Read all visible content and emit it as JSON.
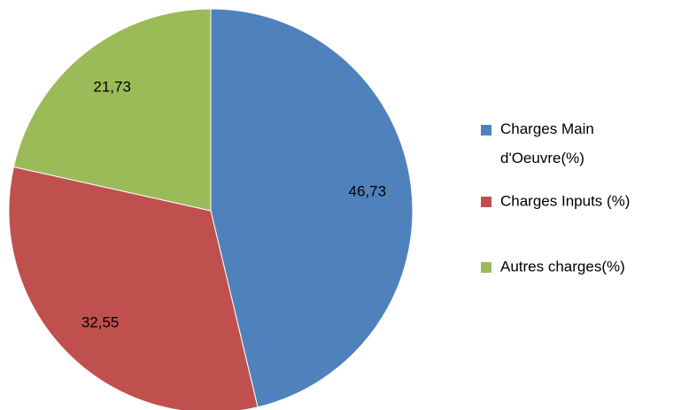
{
  "chart_data": {
    "type": "pie",
    "categories": [
      "Charges Main d'Oeuvre(%)",
      "Charges Inputs (%)",
      "Autres charges(%)"
    ],
    "values": [
      46.73,
      32.55,
      21.73
    ],
    "value_labels": [
      "46,73",
      "32,55",
      "21,73"
    ],
    "colors": [
      "#4f81bd",
      "#c0504d",
      "#9bbb59"
    ],
    "legend": "right"
  }
}
